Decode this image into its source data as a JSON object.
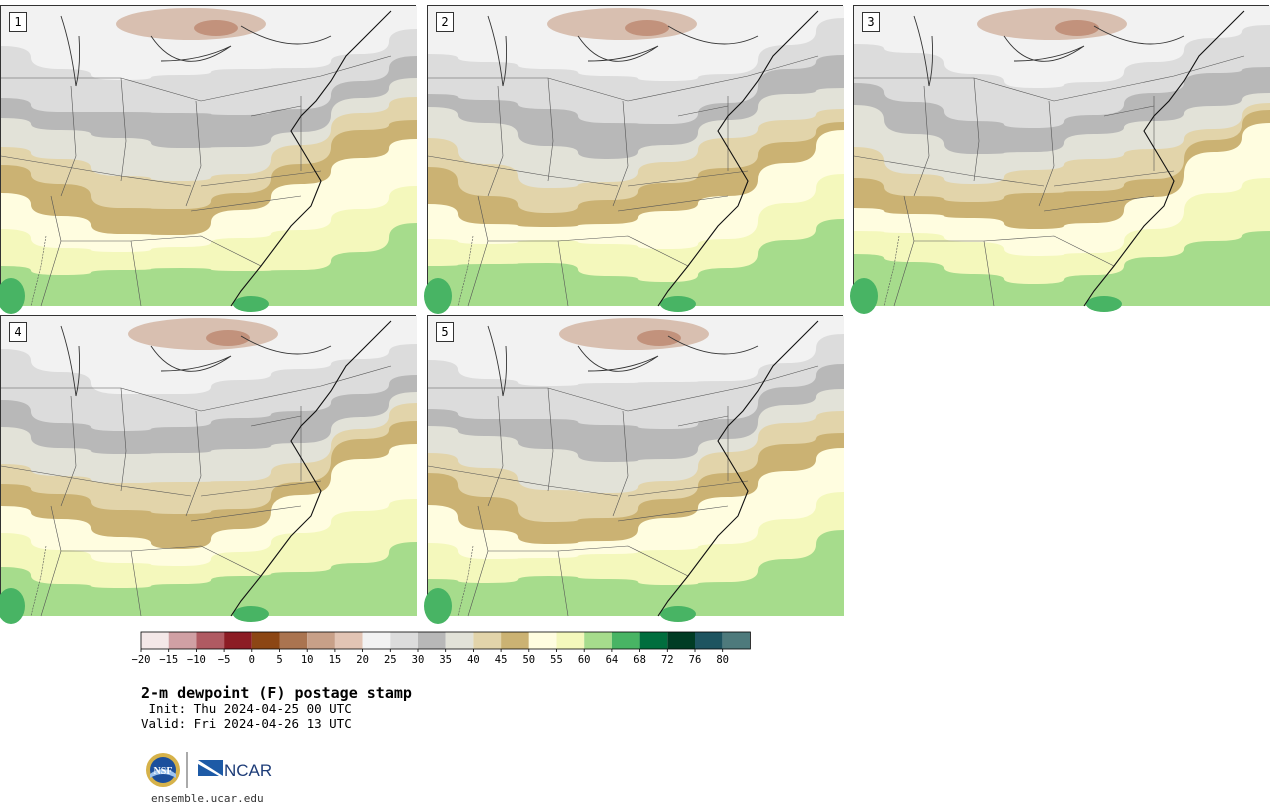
{
  "panels": [
    {
      "label": "1"
    },
    {
      "label": "2"
    },
    {
      "label": "3"
    },
    {
      "label": "4"
    },
    {
      "label": "5"
    }
  ],
  "colorbar": {
    "colors": [
      "#f4e8e8",
      "#d0a0a4",
      "#b05a62",
      "#8c1c24",
      "#8c4614",
      "#aa7450",
      "#c8a088",
      "#e2c4b4",
      "#f2f2f2",
      "#dcdcdc",
      "#b8b8b8",
      "#e2e2d8",
      "#e2d4aa",
      "#cbb273",
      "#fffde0",
      "#f4f8bc",
      "#a6dc8c",
      "#48b464",
      "#006e3e",
      "#003c24",
      "#1e5460",
      "#4e7a7c"
    ],
    "ticks": [
      "−20",
      "−15",
      "−10",
      "−5",
      "0",
      "5",
      "10",
      "15",
      "20",
      "25",
      "30",
      "35",
      "40",
      "45",
      "50",
      "55",
      "60",
      "64",
      "68",
      "72",
      "76",
      "80"
    ]
  },
  "title": "2-m dewpoint (F) postage stamp",
  "init": " Init: Thu 2024-04-25 00 UTC",
  "valid": "Valid: Fri 2024-04-26 13 UTC",
  "logos": {
    "nsf": "NSF",
    "ncar": "NCAR"
  },
  "site": "ensemble.ucar.edu"
}
